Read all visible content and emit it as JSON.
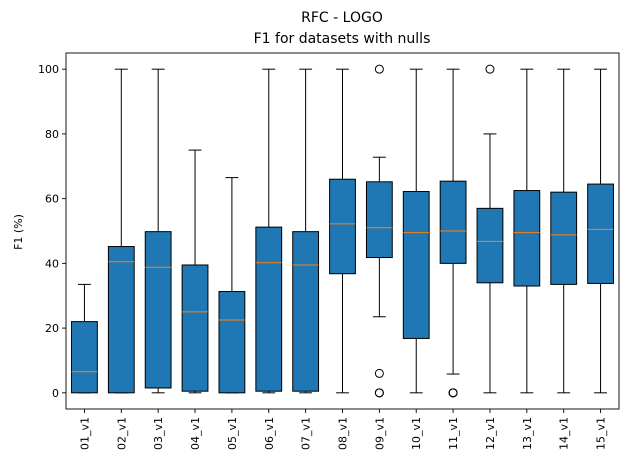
{
  "chart_data": {
    "type": "boxplot",
    "title": "RFC - LOGO",
    "subtitle": "F1 for datasets with nulls",
    "xlabel": "",
    "ylabel": "F1 (%)",
    "ylim": [
      -5,
      105
    ],
    "yticks": [
      0,
      20,
      40,
      60,
      80,
      100
    ],
    "grid": false,
    "colors": {
      "box_fill": "#1f77b4",
      "median": "#ff7f0e",
      "line": "#000000"
    },
    "categories": [
      "01_v1",
      "02_v1",
      "03_v1",
      "04_v1",
      "05_v1",
      "06_v1",
      "07_v1",
      "08_v1",
      "09_v1",
      "10_v1",
      "11_v1",
      "12_v1",
      "13_v1",
      "14_v1",
      "15_v1"
    ],
    "boxes": [
      {
        "whislo": 0,
        "q1": 0,
        "med": 6.5,
        "q3": 22,
        "whishi": 33.5,
        "fliers": []
      },
      {
        "whislo": 0,
        "q1": 0,
        "med": 40.5,
        "q3": 45.2,
        "whishi": 100,
        "fliers": []
      },
      {
        "whislo": 0,
        "q1": 1.5,
        "med": 38.8,
        "q3": 49.8,
        "whishi": 100,
        "fliers": []
      },
      {
        "whislo": 0,
        "q1": 0.5,
        "med": 25,
        "q3": 39.5,
        "whishi": 75,
        "fliers": []
      },
      {
        "whislo": 0,
        "q1": 0,
        "med": 22.5,
        "q3": 31.3,
        "whishi": 66.5,
        "fliers": []
      },
      {
        "whislo": 0,
        "q1": 0.5,
        "med": 40.2,
        "q3": 51.2,
        "whishi": 100,
        "fliers": []
      },
      {
        "whislo": 0,
        "q1": 0.5,
        "med": 39.5,
        "q3": 49.8,
        "whishi": 100,
        "fliers": []
      },
      {
        "whislo": 0,
        "q1": 36.8,
        "med": 52.2,
        "q3": 66,
        "whishi": 100,
        "fliers": []
      },
      {
        "whislo": 23.5,
        "q1": 41.8,
        "med": 51,
        "q3": 65.2,
        "whishi": 72.8,
        "fliers": [
          100,
          6,
          0,
          0
        ]
      },
      {
        "whislo": 0,
        "q1": 16.8,
        "med": 49.5,
        "q3": 62.2,
        "whishi": 100,
        "fliers": []
      },
      {
        "whislo": 5.8,
        "q1": 40,
        "med": 50,
        "q3": 65.4,
        "whishi": 100,
        "fliers": [
          0,
          0,
          0
        ]
      },
      {
        "whislo": 0,
        "q1": 34,
        "med": 46.8,
        "q3": 57,
        "whishi": 80,
        "fliers": [
          100
        ]
      },
      {
        "whislo": 0,
        "q1": 33,
        "med": 49.5,
        "q3": 62.5,
        "whishi": 100,
        "fliers": []
      },
      {
        "whislo": 0,
        "q1": 33.5,
        "med": 48.8,
        "q3": 62,
        "whishi": 100,
        "fliers": []
      },
      {
        "whislo": 0,
        "q1": 33.8,
        "med": 50.5,
        "q3": 64.5,
        "whishi": 100,
        "fliers": []
      }
    ]
  }
}
